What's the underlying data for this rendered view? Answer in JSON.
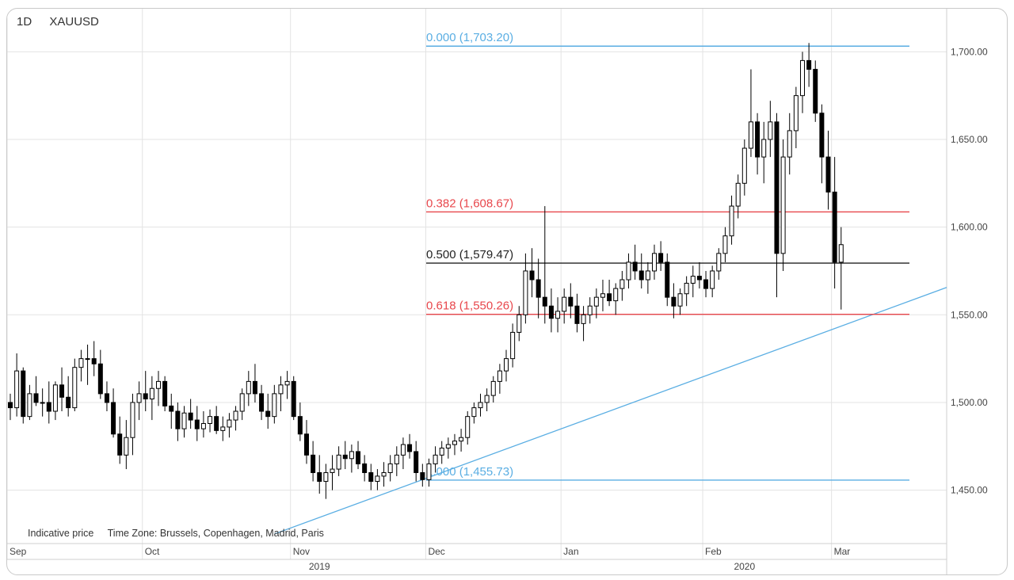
{
  "header": {
    "interval": "1D",
    "symbol": "XAUUSD"
  },
  "footer": {
    "indicative": "Indicative price",
    "timezone": "Time Zone: Brussels, Copenhagen, Madrid, Paris"
  },
  "colors": {
    "up_body": "#ffffff",
    "down_body": "#000000",
    "wick": "#000000",
    "fib_blue": "#5aaee3",
    "fib_red": "#e8474c",
    "fib_mid": "#222222",
    "trendline": "#5aaee3",
    "grid": "#e3e3e3"
  },
  "chart_data": {
    "type": "candlestick",
    "ylim": [
      1420,
      1725
    ],
    "y_ticks": [
      1450,
      1500,
      1550,
      1600,
      1650,
      1700
    ],
    "y_tick_labels": [
      "1,450.00",
      "1,500.00",
      "1,550.00",
      "1,600.00",
      "1,650.00",
      "1,700.00"
    ],
    "month_labels": [
      {
        "label": "Sep",
        "index": 0
      },
      {
        "label": "Oct",
        "index": 21
      },
      {
        "label": "Nov",
        "index": 44
      },
      {
        "label": "Dec",
        "index": 65
      },
      {
        "label": "Jan",
        "index": 86
      },
      {
        "label": "Feb",
        "index": 108
      },
      {
        "label": "Mar",
        "index": 128
      }
    ],
    "year_labels": [
      {
        "label": "2019",
        "index": 48
      },
      {
        "label": "2020",
        "index": 114
      }
    ],
    "fibonacci": [
      {
        "label": "0.000 (1,703.20)",
        "level": 1703.2,
        "color": "blue"
      },
      {
        "label": "0.382 (1,608.67)",
        "level": 1608.67,
        "color": "red"
      },
      {
        "label": "0.500 (1,579.47)",
        "level": 1579.47,
        "color": "black"
      },
      {
        "label": "0.618 (1,550.26)",
        "level": 1550.26,
        "color": "red"
      },
      {
        "label": "1.000 (1,455.73)",
        "level": 1455.73,
        "color": "blue"
      }
    ],
    "trendline": {
      "from": {
        "index": 41,
        "value": 1425
      },
      "to": {
        "index": 139,
        "value": 1557
      }
    },
    "ohlc": [
      [
        1500,
        1505,
        1490,
        1497
      ],
      [
        1497,
        1528,
        1492,
        1518
      ],
      [
        1518,
        1520,
        1488,
        1492
      ],
      [
        1492,
        1510,
        1490,
        1505
      ],
      [
        1505,
        1515,
        1498,
        1500
      ],
      [
        1500,
        1508,
        1492,
        1500
      ],
      [
        1500,
        1512,
        1488,
        1495
      ],
      [
        1495,
        1512,
        1490,
        1510
      ],
      [
        1510,
        1520,
        1495,
        1503
      ],
      [
        1503,
        1515,
        1492,
        1497
      ],
      [
        1497,
        1525,
        1495,
        1520
      ],
      [
        1520,
        1530,
        1512,
        1525
      ],
      [
        1525,
        1533,
        1510,
        1525
      ],
      [
        1525,
        1535,
        1515,
        1522
      ],
      [
        1522,
        1530,
        1502,
        1505
      ],
      [
        1505,
        1512,
        1495,
        1500
      ],
      [
        1500,
        1508,
        1480,
        1482
      ],
      [
        1482,
        1492,
        1465,
        1470
      ],
      [
        1470,
        1490,
        1462,
        1480
      ],
      [
        1480,
        1505,
        1470,
        1500
      ],
      [
        1500,
        1512,
        1490,
        1505
      ],
      [
        1505,
        1518,
        1495,
        1502
      ],
      [
        1502,
        1515,
        1490,
        1508
      ],
      [
        1508,
        1518,
        1498,
        1512
      ],
      [
        1512,
        1515,
        1495,
        1498
      ],
      [
        1498,
        1505,
        1485,
        1495
      ],
      [
        1495,
        1500,
        1478,
        1485
      ],
      [
        1485,
        1498,
        1480,
        1494
      ],
      [
        1494,
        1502,
        1485,
        1490
      ],
      [
        1490,
        1498,
        1478,
        1485
      ],
      [
        1485,
        1495,
        1480,
        1488
      ],
      [
        1488,
        1496,
        1483,
        1492
      ],
      [
        1492,
        1498,
        1482,
        1484
      ],
      [
        1484,
        1492,
        1478,
        1486
      ],
      [
        1486,
        1494,
        1480,
        1490
      ],
      [
        1490,
        1498,
        1484,
        1495
      ],
      [
        1495,
        1508,
        1490,
        1505
      ],
      [
        1505,
        1518,
        1498,
        1512
      ],
      [
        1512,
        1522,
        1500,
        1505
      ],
      [
        1505,
        1510,
        1490,
        1495
      ],
      [
        1495,
        1505,
        1485,
        1492
      ],
      [
        1492,
        1510,
        1488,
        1505
      ],
      [
        1505,
        1515,
        1495,
        1510
      ],
      [
        1510,
        1518,
        1502,
        1512
      ],
      [
        1512,
        1515,
        1490,
        1492
      ],
      [
        1492,
        1500,
        1478,
        1482
      ],
      [
        1482,
        1490,
        1465,
        1470
      ],
      [
        1470,
        1478,
        1455,
        1460
      ],
      [
        1460,
        1470,
        1448,
        1455
      ],
      [
        1455,
        1465,
        1445,
        1460
      ],
      [
        1460,
        1470,
        1450,
        1462
      ],
      [
        1462,
        1475,
        1458,
        1470
      ],
      [
        1470,
        1478,
        1462,
        1468
      ],
      [
        1468,
        1476,
        1460,
        1472
      ],
      [
        1472,
        1478,
        1462,
        1465
      ],
      [
        1465,
        1470,
        1455,
        1460
      ],
      [
        1460,
        1465,
        1450,
        1455
      ],
      [
        1455,
        1462,
        1450,
        1458
      ],
      [
        1458,
        1466,
        1452,
        1460
      ],
      [
        1460,
        1470,
        1455,
        1465
      ],
      [
        1465,
        1475,
        1458,
        1470
      ],
      [
        1470,
        1480,
        1462,
        1476
      ],
      [
        1476,
        1482,
        1468,
        1472
      ],
      [
        1472,
        1478,
        1455,
        1460
      ],
      [
        1460,
        1465,
        1452,
        1456
      ],
      [
        1456,
        1468,
        1452,
        1465
      ],
      [
        1465,
        1475,
        1460,
        1470
      ],
      [
        1470,
        1478,
        1465,
        1474
      ],
      [
        1474,
        1480,
        1468,
        1476
      ],
      [
        1476,
        1482,
        1470,
        1478
      ],
      [
        1478,
        1485,
        1472,
        1480
      ],
      [
        1480,
        1495,
        1476,
        1492
      ],
      [
        1492,
        1500,
        1488,
        1497
      ],
      [
        1497,
        1505,
        1492,
        1500
      ],
      [
        1500,
        1508,
        1495,
        1504
      ],
      [
        1504,
        1515,
        1500,
        1512
      ],
      [
        1512,
        1522,
        1505,
        1518
      ],
      [
        1518,
        1530,
        1512,
        1525
      ],
      [
        1525,
        1545,
        1520,
        1540
      ],
      [
        1540,
        1555,
        1535,
        1550
      ],
      [
        1550,
        1585,
        1545,
        1575
      ],
      [
        1575,
        1588,
        1560,
        1570
      ],
      [
        1570,
        1582,
        1548,
        1560
      ],
      [
        1560,
        1612,
        1545,
        1555
      ],
      [
        1555,
        1565,
        1540,
        1548
      ],
      [
        1548,
        1560,
        1540,
        1552
      ],
      [
        1552,
        1565,
        1545,
        1560
      ],
      [
        1560,
        1568,
        1548,
        1555
      ],
      [
        1555,
        1562,
        1540,
        1545
      ],
      [
        1545,
        1555,
        1535,
        1550
      ],
      [
        1550,
        1560,
        1545,
        1555
      ],
      [
        1555,
        1565,
        1548,
        1560
      ],
      [
        1560,
        1570,
        1552,
        1562
      ],
      [
        1562,
        1570,
        1555,
        1558
      ],
      [
        1558,
        1568,
        1550,
        1565
      ],
      [
        1565,
        1575,
        1558,
        1570
      ],
      [
        1570,
        1585,
        1565,
        1580
      ],
      [
        1580,
        1590,
        1570,
        1575
      ],
      [
        1575,
        1585,
        1565,
        1570
      ],
      [
        1570,
        1580,
        1562,
        1575
      ],
      [
        1575,
        1590,
        1570,
        1585
      ],
      [
        1585,
        1592,
        1575,
        1580
      ],
      [
        1580,
        1585,
        1555,
        1560
      ],
      [
        1560,
        1568,
        1548,
        1555
      ],
      [
        1555,
        1565,
        1550,
        1562
      ],
      [
        1562,
        1572,
        1555,
        1568
      ],
      [
        1568,
        1578,
        1560,
        1572
      ],
      [
        1572,
        1580,
        1565,
        1570
      ],
      [
        1570,
        1575,
        1560,
        1565
      ],
      [
        1565,
        1578,
        1560,
        1575
      ],
      [
        1575,
        1588,
        1570,
        1585
      ],
      [
        1585,
        1600,
        1580,
        1595
      ],
      [
        1595,
        1618,
        1590,
        1612
      ],
      [
        1612,
        1630,
        1605,
        1625
      ],
      [
        1625,
        1650,
        1618,
        1645
      ],
      [
        1645,
        1690,
        1640,
        1660
      ],
      [
        1660,
        1665,
        1630,
        1640
      ],
      [
        1640,
        1660,
        1625,
        1650
      ],
      [
        1650,
        1672,
        1640,
        1660
      ],
      [
        1660,
        1665,
        1560,
        1585
      ],
      [
        1585,
        1650,
        1575,
        1640
      ],
      [
        1640,
        1665,
        1630,
        1655
      ],
      [
        1655,
        1680,
        1645,
        1675
      ],
      [
        1675,
        1700,
        1665,
        1695
      ],
      [
        1695,
        1705,
        1680,
        1690
      ],
      [
        1690,
        1695,
        1660,
        1665
      ],
      [
        1665,
        1670,
        1625,
        1640
      ],
      [
        1640,
        1655,
        1610,
        1620
      ],
      [
        1620,
        1640,
        1565,
        1580
      ],
      [
        1580,
        1600,
        1553,
        1590
      ]
    ]
  }
}
